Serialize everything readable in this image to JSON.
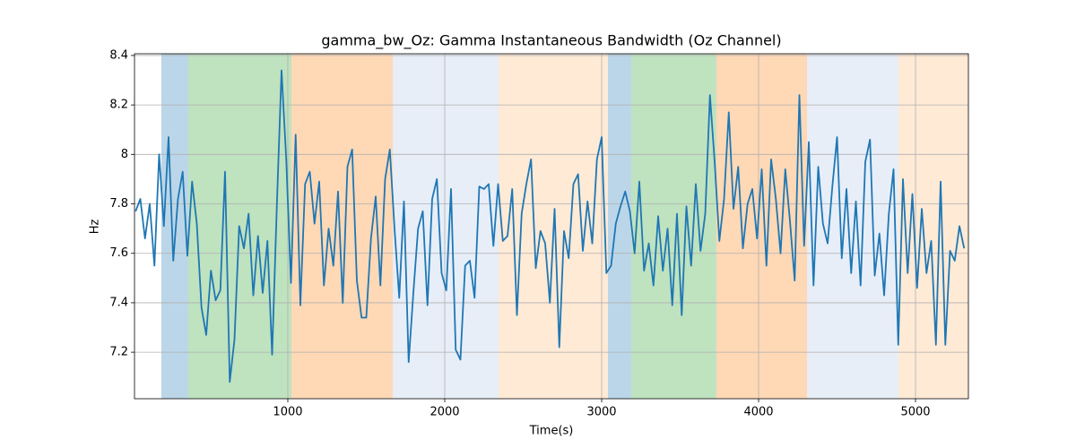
{
  "chart_data": {
    "type": "line",
    "title": "gamma_bw_Oz: Gamma Instantaneous Bandwidth (Oz Channel)",
    "xlabel": "Time(s)",
    "ylabel": "Hz",
    "xlim": [
      23,
      5337
    ],
    "ylim": [
      7.012,
      8.407
    ],
    "xticks": [
      1000,
      2000,
      3000,
      4000,
      5000
    ],
    "yticks": [
      7.2,
      7.4,
      7.6,
      7.8,
      8.0,
      8.2,
      8.4
    ],
    "grid": true,
    "spans": [
      {
        "start": 194,
        "end": 366,
        "color": "#1f77b4"
      },
      {
        "start": 366,
        "end": 1023,
        "color": "#2ca02c"
      },
      {
        "start": 1023,
        "end": 1669,
        "color": "#ff7f0e"
      },
      {
        "start": 1669,
        "end": 2343,
        "color": "#aec7e8"
      },
      {
        "start": 2343,
        "end": 3040,
        "color": "#ffbb78"
      },
      {
        "start": 3040,
        "end": 3189,
        "color": "#1f77b4"
      },
      {
        "start": 3189,
        "end": 3731,
        "color": "#2ca02c"
      },
      {
        "start": 3731,
        "end": 4309,
        "color": "#ff7f0e"
      },
      {
        "start": 4309,
        "end": 4891,
        "color": "#aec7e8"
      },
      {
        "start": 4891,
        "end": 5337,
        "color": "#ffbb78"
      }
    ],
    "x": [
      30,
      60,
      90,
      120,
      150,
      180,
      210,
      240,
      270,
      300,
      330,
      360,
      390,
      420,
      450,
      480,
      510,
      540,
      570,
      600,
      630,
      660,
      690,
      720,
      750,
      780,
      810,
      840,
      870,
      900,
      930,
      960,
      990,
      1020,
      1050,
      1080,
      1110,
      1140,
      1170,
      1200,
      1230,
      1260,
      1290,
      1320,
      1350,
      1380,
      1410,
      1440,
      1470,
      1500,
      1530,
      1560,
      1590,
      1620,
      1650,
      1680,
      1710,
      1740,
      1770,
      1800,
      1830,
      1860,
      1890,
      1920,
      1950,
      1980,
      2010,
      2040,
      2070,
      2100,
      2130,
      2160,
      2190,
      2220,
      2250,
      2280,
      2310,
      2340,
      2370,
      2400,
      2430,
      2460,
      2490,
      2520,
      2550,
      2580,
      2610,
      2640,
      2670,
      2700,
      2730,
      2760,
      2790,
      2820,
      2850,
      2880,
      2910,
      2940,
      2970,
      3000,
      3030,
      3060,
      3090,
      3120,
      3150,
      3180,
      3210,
      3240,
      3270,
      3300,
      3330,
      3360,
      3390,
      3420,
      3450,
      3480,
      3510,
      3540,
      3570,
      3600,
      3630,
      3660,
      3690,
      3720,
      3750,
      3780,
      3810,
      3840,
      3870,
      3900,
      3930,
      3960,
      3990,
      4020,
      4050,
      4080,
      4110,
      4140,
      4170,
      4200,
      4230,
      4260,
      4290,
      4320,
      4350,
      4380,
      4410,
      4440,
      4470,
      4500,
      4530,
      4560,
      4590,
      4620,
      4650,
      4680,
      4710,
      4740,
      4770,
      4800,
      4830,
      4860,
      4890,
      4920,
      4950,
      4980,
      5010,
      5040,
      5070,
      5100,
      5130,
      5160,
      5190,
      5220,
      5250,
      5280,
      5310
    ],
    "series": [
      {
        "color": "#1f77b4",
        "values": [
          7.77,
          7.82,
          7.66,
          7.8,
          7.55,
          8.0,
          7.71,
          8.07,
          7.57,
          7.82,
          7.93,
          7.59,
          7.89,
          7.72,
          7.38,
          7.27,
          7.53,
          7.41,
          7.45,
          7.93,
          7.08,
          7.25,
          7.71,
          7.62,
          7.76,
          7.43,
          7.67,
          7.44,
          7.65,
          7.19,
          7.79,
          8.34,
          7.98,
          7.48,
          8.08,
          7.39,
          7.88,
          7.93,
          7.72,
          7.89,
          7.47,
          7.7,
          7.55,
          7.85,
          7.4,
          7.95,
          8.02,
          7.49,
          7.34,
          7.34,
          7.66,
          7.83,
          7.47,
          7.9,
          8.02,
          7.7,
          7.42,
          7.81,
          7.16,
          7.44,
          7.7,
          7.77,
          7.39,
          7.82,
          7.9,
          7.52,
          7.45,
          7.86,
          7.21,
          7.17,
          7.55,
          7.57,
          7.42,
          7.87,
          7.86,
          7.88,
          7.63,
          7.88,
          7.65,
          7.67,
          7.86,
          7.35,
          7.76,
          7.88,
          7.98,
          7.54,
          7.69,
          7.64,
          7.4,
          7.78,
          7.22,
          7.69,
          7.58,
          7.88,
          7.92,
          7.61,
          7.81,
          7.64,
          7.98,
          8.07,
          7.52,
          7.55,
          7.72,
          7.79,
          7.85,
          7.77,
          7.6,
          7.89,
          7.53,
          7.64,
          7.47,
          7.75,
          7.53,
          7.7,
          7.39,
          7.76,
          7.35,
          7.79,
          7.55,
          7.88,
          7.61,
          7.76,
          8.24,
          7.97,
          7.65,
          7.82,
          8.17,
          7.78,
          7.95,
          7.62,
          7.8,
          7.86,
          7.66,
          7.94,
          7.55,
          7.98,
          7.82,
          7.6,
          7.94,
          7.73,
          7.49,
          8.24,
          7.63,
          8.05,
          7.47,
          7.95,
          7.72,
          7.64,
          7.87,
          8.07,
          7.58,
          7.86,
          7.52,
          7.81,
          7.47,
          7.97,
          8.06,
          7.51,
          7.68,
          7.43,
          7.76,
          7.94,
          7.23,
          7.9,
          7.52,
          7.84,
          7.46,
          7.78,
          7.52,
          7.65,
          7.23,
          7.89,
          7.23,
          7.61,
          7.57,
          7.71,
          7.62
        ]
      }
    ]
  }
}
